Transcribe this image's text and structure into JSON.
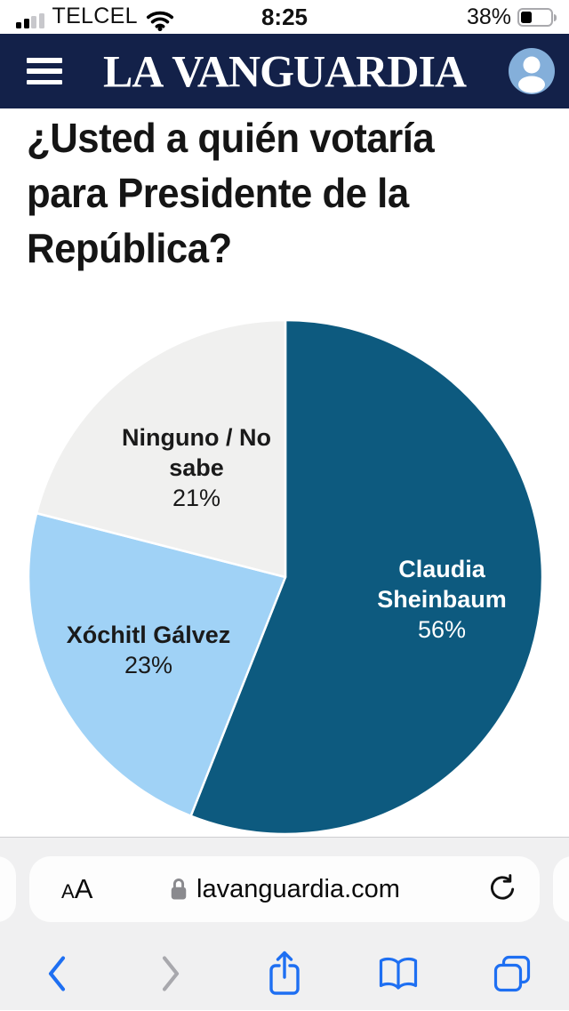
{
  "status_bar": {
    "carrier": "TELCEL",
    "time": "8:25",
    "battery_percent": "38%"
  },
  "header": {
    "logo_text": "LA VANGUARDIA"
  },
  "article": {
    "headline_lines": [
      "¿Usted a quién votaría",
      "para Presidente de la",
      "República?"
    ]
  },
  "chart_data": {
    "type": "pie",
    "title": "¿Usted a quién votaría para Presidente de la República?",
    "start_angle_deg": 0,
    "direction": "clockwise",
    "slice_border_color": "#ffffff",
    "slices": [
      {
        "label": "Claudia Sheinbaum",
        "value": 56,
        "percent_label": "56%",
        "color": "#0d5a7f",
        "label_color": "#ffffff"
      },
      {
        "label": "Xóchitl Gálvez",
        "value": 23,
        "percent_label": "23%",
        "color": "#a0d2f6",
        "label_color": "#1a1a1a"
      },
      {
        "label": "Ninguno / No sabe",
        "value": 21,
        "percent_label": "21%",
        "color": "#f0f0ef",
        "label_color": "#1a1a1a"
      }
    ]
  },
  "browser": {
    "url_bar": {
      "text_size_label": "AA",
      "url": "lavanguardia.com"
    }
  },
  "colors": {
    "header_navy": "#132149",
    "toolbar_blue": "#1e6ff2",
    "disabled_gray": "#a8a8ad",
    "avatar_blue": "#84afda"
  }
}
